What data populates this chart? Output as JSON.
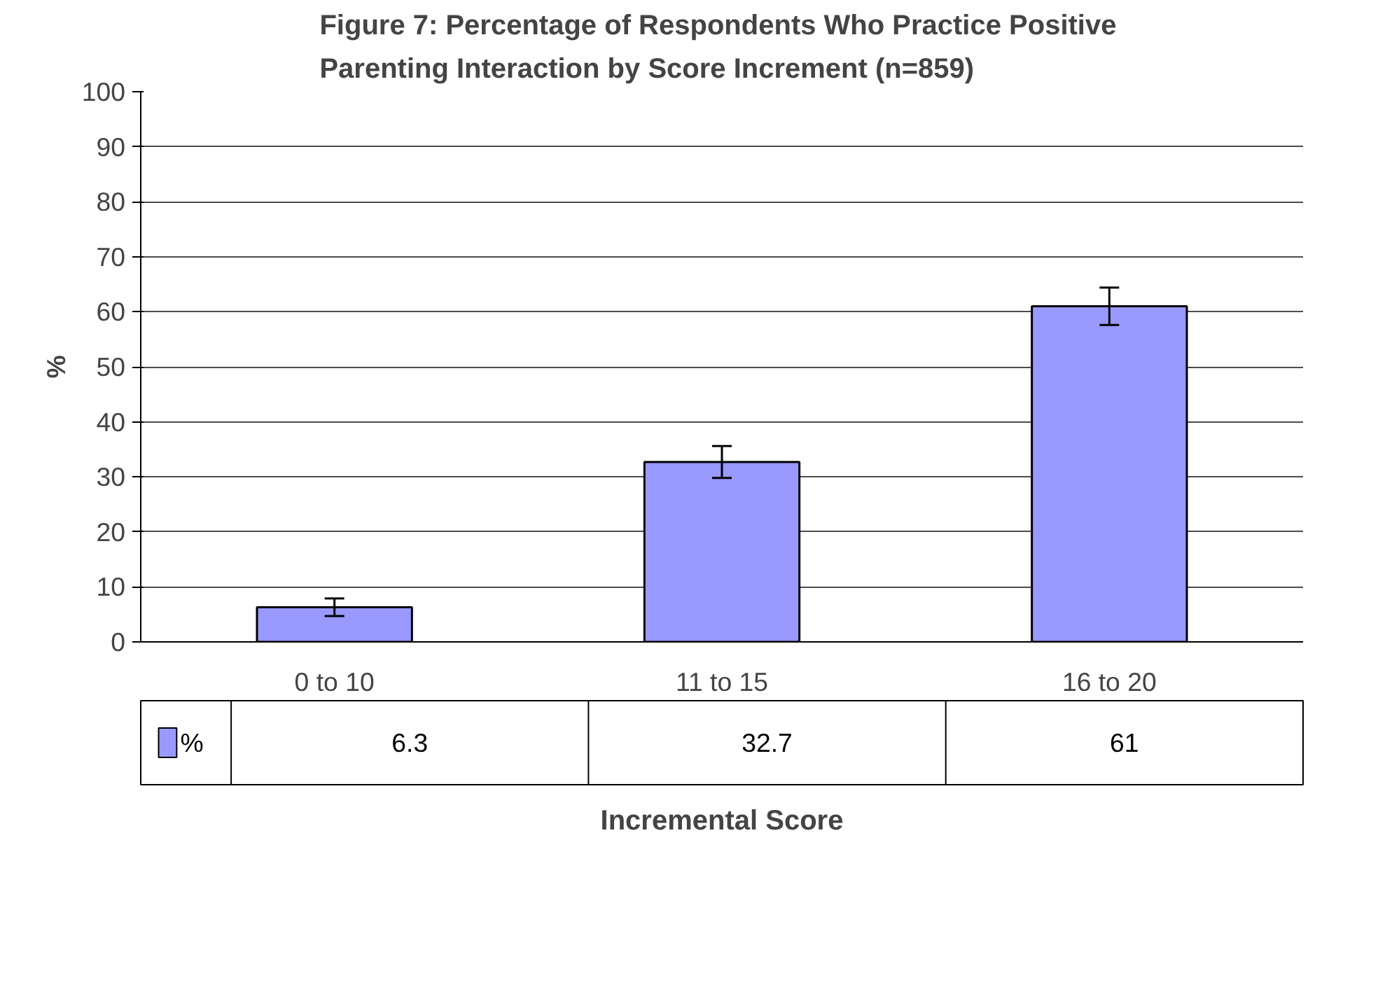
{
  "chart_data": {
    "type": "bar",
    "title": "Figure 7:  Percentage of Respondents Who Practice Positive\nParenting Interaction by Score Increment  (n=859)",
    "xlabel": "Incremental Score",
    "ylabel": "%",
    "categories": [
      "0 to 10",
      "11 to 15",
      "16 to 20"
    ],
    "series": [
      {
        "name": "%",
        "color": "#9999ff",
        "values": [
          6.3,
          32.7,
          61
        ],
        "errors": [
          1.6,
          2.9,
          3.4
        ]
      }
    ],
    "ylim": [
      0,
      100
    ],
    "yticks": [
      0,
      10,
      20,
      30,
      40,
      50,
      60,
      70,
      80,
      90,
      100
    ],
    "grid": "y",
    "legend": "bottom left",
    "data_labels": true
  }
}
